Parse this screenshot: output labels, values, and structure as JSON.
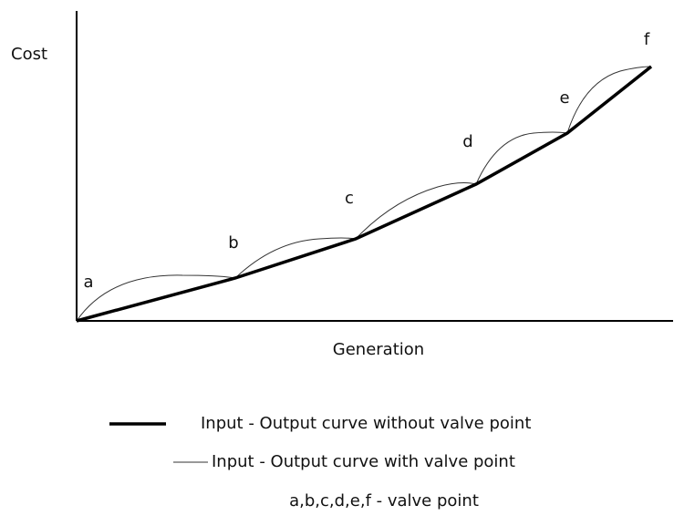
{
  "axes": {
    "y_label": "Cost",
    "x_label": "Generation"
  },
  "points": [
    "a",
    "b",
    "c",
    "d",
    "e",
    "f"
  ],
  "legend": [
    "Input - Output curve without valve point",
    "Input - Output curve with valve point"
  ],
  "note": "a,b,c,d,e,f - valve point"
}
